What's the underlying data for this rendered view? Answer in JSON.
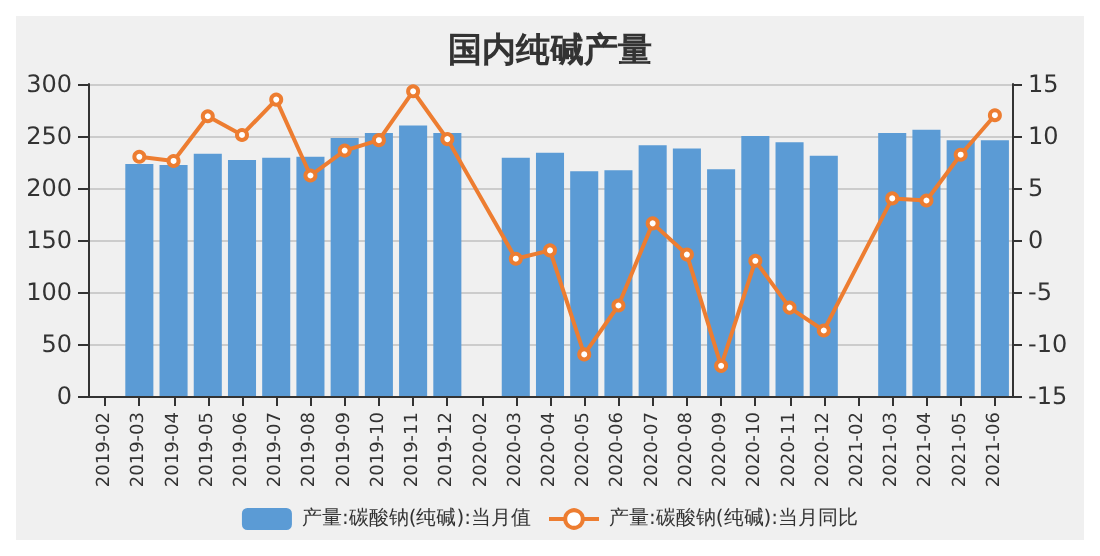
{
  "chart_data": {
    "type": "bar",
    "title": "国内纯碱产量",
    "categories": [
      "2019-02",
      "2019-03",
      "2019-04",
      "2019-05",
      "2019-06",
      "2019-07",
      "2019-08",
      "2019-09",
      "2019-10",
      "2019-11",
      "2019-12",
      "2020-02",
      "2020-03",
      "2020-04",
      "2020-05",
      "2020-06",
      "2020-07",
      "2020-08",
      "2020-09",
      "2020-10",
      "2020-11",
      "2020-12",
      "2021-02",
      "2021-03",
      "2021-04",
      "2021-05",
      "2021-06"
    ],
    "series": [
      {
        "name": "产量:碳酸钠(纯碱):当月值",
        "color": "#5b9bd5",
        "values": [
          null,
          223,
          222,
          233,
          227,
          229,
          230,
          248,
          253,
          260,
          253,
          null,
          229,
          234,
          216,
          217,
          241,
          238,
          218,
          250,
          244,
          231,
          null,
          253,
          256,
          246,
          246
        ]
      },
      {
        "name": "产量:碳酸钠(纯碱):当月同比",
        "type": "line",
        "axis": "y2",
        "color": "#ed7d31",
        "marker": "circle",
        "values": [
          null,
          8.0,
          7.6,
          11.9,
          10.1,
          13.5,
          6.2,
          8.6,
          9.6,
          14.3,
          9.7,
          null,
          -1.8,
          -1.0,
          -11.0,
          -6.3,
          1.6,
          -1.4,
          -12.1,
          -2.0,
          -6.5,
          -8.7,
          null,
          4.0,
          3.8,
          8.2,
          12.0
        ]
      }
    ],
    "ylim": [
      0,
      300
    ],
    "yticks": [
      0,
      50,
      100,
      150,
      200,
      250,
      300
    ],
    "y2lim": [
      -15,
      15
    ],
    "y2ticks": [
      -15,
      -10,
      -5,
      0,
      5,
      10,
      15
    ],
    "grid": "y",
    "legend": "bottom"
  }
}
